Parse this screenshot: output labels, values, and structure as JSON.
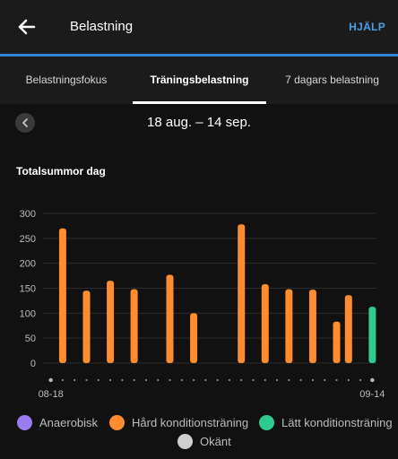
{
  "header": {
    "title": "Belastning",
    "help_label": "HJÄLP"
  },
  "tabs": [
    {
      "label": "Belastningsfokus"
    },
    {
      "label": "Träningsbelastning"
    },
    {
      "label": "7 dagars belastning"
    }
  ],
  "active_tab": 1,
  "date_range": "18 aug. – 14 sep.",
  "chart_title": "Totalsummor dag",
  "chart_data": {
    "type": "bar",
    "title": "Totalsummor dag",
    "xlabel": "",
    "ylabel": "",
    "ylim": [
      0,
      300
    ],
    "yticks": [
      "0",
      "50",
      "100",
      "150",
      "200",
      "250",
      "300"
    ],
    "x_tick_labels": [
      "08-18",
      "09-14"
    ],
    "grid": true,
    "legend_position": "bottom",
    "series": [
      {
        "name": "Anaerobisk",
        "color": "#9b7cf0",
        "x": [],
        "values": []
      },
      {
        "name": "Hård konditionsträning",
        "color": "#ff8c2e",
        "x": [
          "08-19",
          "08-21",
          "08-23",
          "08-25",
          "08-28",
          "08-30",
          "09-03",
          "09-05",
          "09-07",
          "09-09",
          "09-11",
          "09-12"
        ],
        "values": [
          270,
          145,
          165,
          148,
          177,
          100,
          278,
          158,
          148,
          147,
          83,
          136
        ]
      },
      {
        "name": "Lätt konditionsträning",
        "color": "#2fcb8e",
        "x": [
          "09-14"
        ],
        "values": [
          113
        ]
      },
      {
        "name": "Okänt",
        "color": "#cfcfcf",
        "x": [],
        "values": []
      }
    ]
  },
  "legend": [
    {
      "label": "Anaerobisk",
      "color": "#9b7cf0"
    },
    {
      "label": "Hård konditionsträning",
      "color": "#ff8c2e"
    },
    {
      "label": "Lätt konditionsträning",
      "color": "#2fcb8e"
    },
    {
      "label": "Okänt",
      "color": "#cfcfcf"
    }
  ],
  "icons": {
    "back": "arrow-left-icon",
    "previous": "chevron-left-icon"
  }
}
